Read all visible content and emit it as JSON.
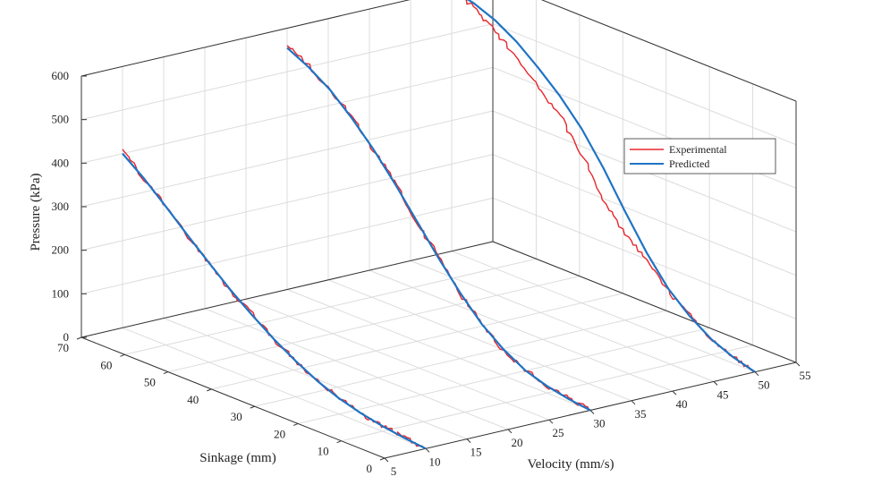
{
  "chart_data": {
    "type": "line",
    "subtype": "3d-line",
    "zlabel": "Pressure (kPa)",
    "ylabel": "Sinkage (mm)",
    "xlabel": "Velocity (mm/s)",
    "z_ticks": [
      "0",
      "100",
      "200",
      "300",
      "400",
      "500",
      "600"
    ],
    "y_ticks": [
      "0",
      "10",
      "20",
      "30",
      "40",
      "50",
      "60",
      "70"
    ],
    "x_ticks": [
      "5",
      "10",
      "15",
      "20",
      "25",
      "30",
      "35",
      "40",
      "45",
      "50",
      "55"
    ],
    "zlim": [
      0,
      600
    ],
    "ylim": [
      0,
      70
    ],
    "xlim": [
      5,
      55
    ],
    "grid": true,
    "legend_position": "right",
    "series": [
      {
        "name": "Experimental",
        "color": "#e8262b"
      },
      {
        "name": "Predicted",
        "color": "#1f74c4"
      }
    ],
    "curves": [
      {
        "velocity": 10,
        "sinkage": [
          0,
          5,
          10,
          15,
          20,
          25,
          30,
          35,
          40,
          45,
          50,
          55,
          60,
          65,
          70
        ],
        "predicted": [
          0,
          5,
          12,
          22,
          36,
          56,
          82,
          112,
          147,
          185,
          228,
          272,
          318,
          362,
          400
        ],
        "experimental": [
          0,
          6,
          14,
          21,
          38,
          55,
          85,
          110,
          150,
          183,
          230,
          270,
          320,
          360,
          410
        ]
      },
      {
        "velocity": 30,
        "sinkage": [
          0,
          5,
          10,
          15,
          20,
          25,
          30,
          35,
          40,
          45,
          50,
          55,
          60,
          65,
          70
        ],
        "predicted": [
          0,
          6,
          16,
          32,
          60,
          98,
          150,
          210,
          275,
          340,
          400,
          452,
          497,
          530,
          555
        ],
        "experimental": [
          0,
          7,
          15,
          34,
          58,
          100,
          148,
          215,
          270,
          345,
          398,
          455,
          495,
          532,
          560
        ]
      },
      {
        "velocity": 50,
        "sinkage": [
          0,
          5,
          10,
          15,
          20,
          25,
          30,
          35,
          40,
          45,
          50,
          55,
          60,
          65,
          70
        ],
        "predicted": [
          0,
          14,
          35,
          68,
          112,
          175,
          250,
          330,
          400,
          455,
          500,
          540,
          570,
          590,
          600
        ],
        "experimental": [
          0,
          15,
          33,
          72,
          105,
          160,
          200,
          255,
          345,
          410,
          455,
          505,
          545,
          580,
          605
        ]
      }
    ]
  }
}
